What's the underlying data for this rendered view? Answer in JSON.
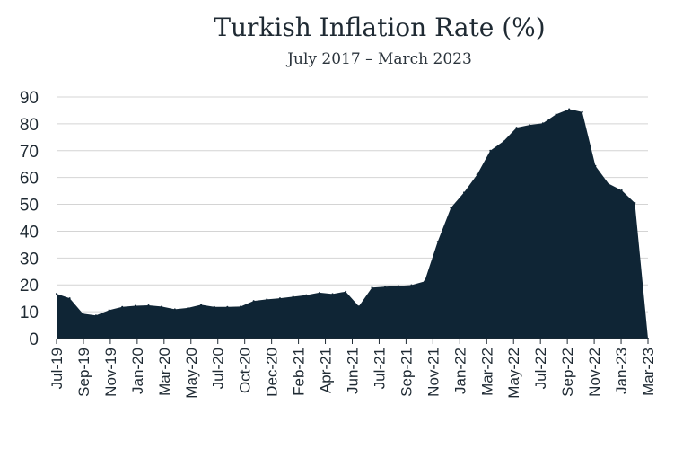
{
  "chart_data": {
    "type": "area",
    "title": "Turkish Inflation Rate (%)",
    "subtitle": "July 2017 – March 2023",
    "xlabel": "",
    "ylabel": "",
    "ylim": [
      0,
      90
    ],
    "y_ticks": [
      0,
      10,
      20,
      30,
      40,
      50,
      60,
      70,
      80,
      90
    ],
    "grid": true,
    "legend": "none",
    "color": "#0f2535",
    "x_tick_labels": [
      "Jul-19",
      "Sep-19",
      "Nov-19",
      "Jan-20",
      "Mar-20",
      "May-20",
      "Jul-20",
      "Oct-20",
      "Dec-20",
      "Feb-21",
      "Apr-21",
      "Jun-21",
      "Jul-21",
      "Sep-21",
      "Nov-21",
      "Jan-22",
      "Mar-22",
      "May-22",
      "Jul-22",
      "Sep-22",
      "Nov-22",
      "Jan-23",
      "Mar-23"
    ],
    "x": [
      "Jul-19",
      "Aug-19",
      "Sep-19",
      "Oct-19",
      "Nov-19",
      "Dec-19",
      "Jan-20",
      "Feb-20",
      "Mar-20",
      "Apr-20",
      "May-20",
      "Jun-20",
      "Jul-20",
      "Aug-20",
      "Oct-20",
      "Nov-20",
      "Dec-20",
      "Jan-21",
      "Feb-21",
      "Mar-21",
      "Apr-21",
      "May-21",
      "Jun-21",
      "Jun-21b",
      "Jul-21",
      "Aug-21",
      "Sep-21",
      "Oct-21",
      "Nov-21",
      "Dec-21",
      "Jan-22",
      "Feb-22",
      "Mar-22",
      "Apr-22",
      "May-22",
      "Jun-22",
      "Jul-22",
      "Aug-22",
      "Sep-22",
      "Oct-22",
      "Nov-22",
      "Dec-22",
      "Jan-23",
      "Feb-23",
      "Mar-23",
      "Mar-23b"
    ],
    "values": [
      16.7,
      15.0,
      9.3,
      8.6,
      10.6,
      11.8,
      12.2,
      12.4,
      11.9,
      10.9,
      11.4,
      12.6,
      11.8,
      11.8,
      11.9,
      14.0,
      14.6,
      15.0,
      15.6,
      16.2,
      17.1,
      16.6,
      17.5,
      12.0,
      19.0,
      19.3,
      19.6,
      19.9,
      21.3,
      36.1,
      48.7,
      54.4,
      61.1,
      70.0,
      73.5,
      78.6,
      79.6,
      80.2,
      83.5,
      85.5,
      84.4,
      64.3,
      57.7,
      55.2,
      50.5,
      0
    ]
  }
}
